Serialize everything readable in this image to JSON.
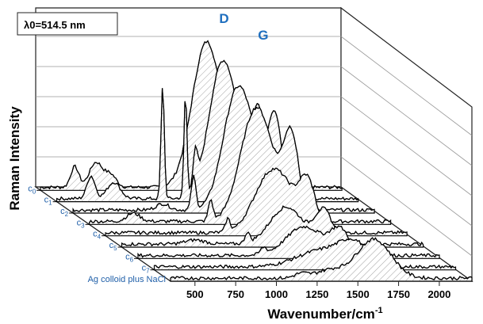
{
  "chart_data": {
    "type": "area",
    "annotation_lambda": "λ0=514.5 nm",
    "ylabel": "Raman Intensity",
    "xlabel": "Wavenumber/cm-1",
    "xlabel_main": "Wavenumber/cm",
    "xlabel_sup": "-1",
    "x_ticks": [
      500,
      750,
      1000,
      1250,
      1500,
      1750,
      2000
    ],
    "xlim": [
      350,
      2200
    ],
    "peak_labels": [
      {
        "text": "D",
        "x": 1350
      },
      {
        "text": "G",
        "x": 1590
      }
    ],
    "series": [
      {
        "name": "c0",
        "peaks": [
          [
            560,
            10,
            25
          ],
          [
            690,
            12,
            40
          ],
          [
            780,
            6,
            35
          ],
          [
            1355,
            58,
            85
          ],
          [
            1585,
            40,
            50
          ],
          [
            1430,
            18,
            80
          ]
        ],
        "base": 1.5
      },
      {
        "name": "c1",
        "peaks": [
          [
            560,
            11,
            25
          ],
          [
            700,
            8,
            40
          ],
          [
            1000,
            55,
            10
          ],
          [
            1140,
            50,
            9
          ],
          [
            1200,
            16,
            14
          ],
          [
            1355,
            56,
            80
          ],
          [
            1590,
            40,
            45
          ],
          [
            1450,
            20,
            80
          ]
        ],
        "base": 1.5
      },
      {
        "name": "c2",
        "peaks": [
          [
            900,
            3,
            40
          ],
          [
            1090,
            16,
            14
          ],
          [
            1355,
            56,
            85
          ],
          [
            1590,
            44,
            45
          ],
          [
            1470,
            14,
            70
          ]
        ],
        "base": 1.5
      },
      {
        "name": "c3",
        "peaks": [
          [
            620,
            4,
            40
          ],
          [
            1095,
            10,
            14
          ],
          [
            1360,
            48,
            90
          ],
          [
            1590,
            40,
            48
          ],
          [
            1460,
            14,
            80
          ]
        ],
        "base": 1.5
      },
      {
        "name": "c4",
        "peaks": [
          [
            1100,
            6,
            14
          ],
          [
            1360,
            28,
            100
          ],
          [
            1590,
            24,
            52
          ],
          [
            1470,
            8,
            70
          ]
        ],
        "base": 1.5
      },
      {
        "name": "c5",
        "peaks": [
          [
            800,
            2,
            60
          ],
          [
            1120,
            5,
            14
          ],
          [
            1360,
            18,
            100
          ],
          [
            1590,
            16,
            55
          ]
        ],
        "base": 1.5
      },
      {
        "name": "c6",
        "peaks": [
          [
            1120,
            3,
            18
          ],
          [
            1370,
            14,
            110
          ],
          [
            1590,
            12,
            60
          ]
        ],
        "base": 1.5
      },
      {
        "name": "c7",
        "peaks": [
          [
            1380,
            8,
            150
          ],
          [
            1580,
            10,
            90
          ]
        ],
        "base": 1.5
      },
      {
        "name": "Ag colloid plus NaCl",
        "peaks": [
          [
            1150,
            2,
            40
          ],
          [
            1330,
            4,
            90
          ],
          [
            1590,
            18,
            100
          ],
          [
            1700,
            2,
            80
          ]
        ],
        "base": 1.5
      }
    ]
  }
}
